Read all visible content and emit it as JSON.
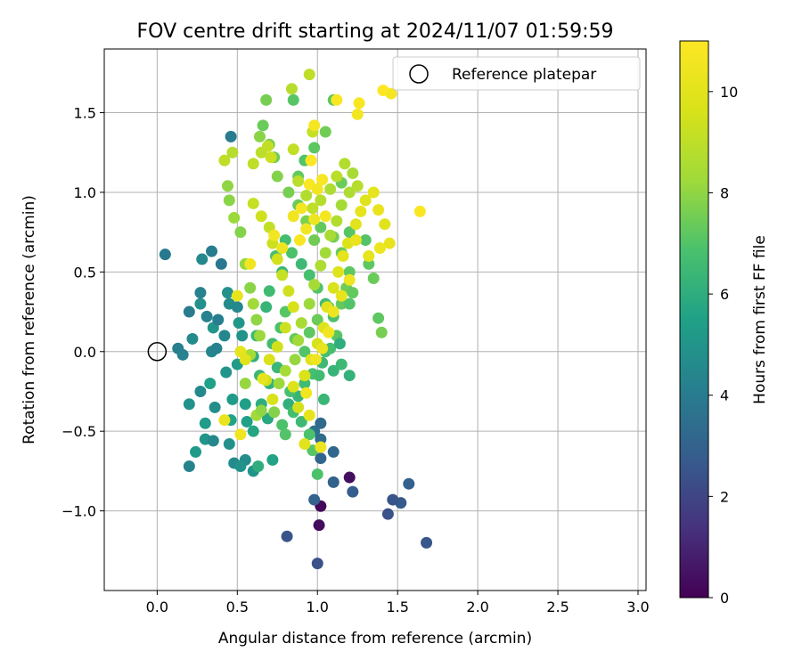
{
  "chart_data": {
    "type": "scatter",
    "title": "FOV centre drift starting at 2024/11/07 01:59:59",
    "xlabel": "Angular distance from reference (arcmin)",
    "ylabel": "Rotation from reference (arcmin)",
    "xlim": [
      -0.33,
      3.05
    ],
    "ylim": [
      -1.5,
      1.9
    ],
    "xticks": [
      0.0,
      0.5,
      1.0,
      1.5,
      2.0,
      2.5,
      3.0
    ],
    "xtick_labels": [
      "0.0",
      "0.5",
      "1.0",
      "1.5",
      "2.0",
      "2.5",
      "3.0"
    ],
    "yticks": [
      -1.0,
      -0.5,
      0.0,
      0.5,
      1.0,
      1.5
    ],
    "ytick_labels": [
      "−1.0",
      "−0.5",
      "0.0",
      "0.5",
      "1.0",
      "1.5"
    ],
    "grid": true,
    "colormap": "viridis",
    "colorbar": {
      "label": "Hours from first FF file",
      "min": 0,
      "max": 11,
      "ticks": [
        0,
        2,
        4,
        6,
        8,
        10
      ],
      "tick_labels": [
        "0",
        "2",
        "4",
        "6",
        "8",
        "10"
      ]
    },
    "legend": {
      "position": "top-right",
      "entries": [
        {
          "label": "Reference platepar",
          "marker": "open-circle"
        }
      ]
    },
    "reference_point": {
      "x": 0.0,
      "y": 0.0
    },
    "points": [
      [
        1.02,
        -0.97,
        0.2
      ],
      [
        1.01,
        -1.09,
        0.3
      ],
      [
        1.2,
        -0.79,
        0.4
      ],
      [
        0.81,
        -1.16,
        2.5
      ],
      [
        1.0,
        -1.33,
        2.4
      ],
      [
        1.68,
        -1.2,
        2.6
      ],
      [
        1.44,
        -1.02,
        2.4
      ],
      [
        1.52,
        -0.95,
        2.7
      ],
      [
        1.57,
        -0.83,
        2.9
      ],
      [
        1.22,
        -0.88,
        2.8
      ],
      [
        1.1,
        -0.82,
        3.0
      ],
      [
        1.47,
        -0.93,
        2.5
      ],
      [
        1.1,
        -0.63,
        3.2
      ],
      [
        0.98,
        -0.93,
        3.0
      ],
      [
        1.02,
        -0.67,
        3.1
      ],
      [
        1.02,
        -0.45,
        3.3
      ],
      [
        1.02,
        -0.55,
        3.4
      ],
      [
        0.98,
        -0.5,
        3.5
      ],
      [
        0.05,
        0.61,
        3.9
      ],
      [
        0.46,
        1.35,
        4.0
      ],
      [
        0.2,
        -0.72,
        4.3
      ],
      [
        0.28,
        0.58,
        4.5
      ],
      [
        0.34,
        0.63,
        4.0
      ],
      [
        0.4,
        0.55,
        3.8
      ],
      [
        0.13,
        0.02,
        4.1
      ],
      [
        0.16,
        -0.02,
        4.2
      ],
      [
        0.2,
        0.25,
        4.0
      ],
      [
        0.22,
        0.08,
        4.6
      ],
      [
        0.27,
        0.3,
        4.8
      ],
      [
        0.31,
        0.22,
        4.2
      ],
      [
        0.34,
        0.0,
        4.4
      ],
      [
        0.35,
        0.15,
        5.0
      ],
      [
        0.2,
        -0.33,
        4.9
      ],
      [
        0.24,
        -0.63,
        5.2
      ],
      [
        0.3,
        -0.55,
        5.0
      ],
      [
        0.36,
        -0.35,
        4.7
      ],
      [
        0.35,
        -0.56,
        4.5
      ],
      [
        0.45,
        -0.58,
        4.8
      ],
      [
        0.48,
        -0.7,
        4.6
      ],
      [
        0.55,
        -0.68,
        4.7
      ],
      [
        0.52,
        -0.72,
        4.9
      ],
      [
        0.6,
        -0.75,
        5.0
      ],
      [
        0.27,
        0.37,
        4.3
      ],
      [
        0.27,
        -0.25,
        4.5
      ],
      [
        0.3,
        -0.45,
        5.3
      ],
      [
        0.33,
        -0.2,
        5.5
      ],
      [
        0.37,
        0.02,
        4.2
      ],
      [
        0.42,
        0.1,
        4.4
      ],
      [
        0.38,
        0.2,
        4.1
      ],
      [
        0.45,
        0.3,
        4.6
      ],
      [
        0.5,
        0.28,
        4.5
      ],
      [
        0.44,
        0.37,
        4.8
      ],
      [
        0.51,
        0.18,
        5.1
      ],
      [
        0.53,
        0.1,
        4.9
      ],
      [
        0.5,
        -0.08,
        5.3
      ],
      [
        0.43,
        -0.13,
        5.0
      ],
      [
        0.47,
        -0.3,
        5.2
      ],
      [
        0.46,
        -0.43,
        5.6
      ],
      [
        0.55,
        -0.33,
        5.4
      ],
      [
        0.56,
        -0.44,
        5.5
      ],
      [
        0.6,
        -0.5,
        5.7
      ],
      [
        0.63,
        -0.72,
        6.0
      ],
      [
        0.72,
        -0.68,
        5.6
      ],
      [
        0.69,
        -0.42,
        5.8
      ],
      [
        0.65,
        -0.33,
        6.0
      ],
      [
        0.7,
        -0.2,
        6.2
      ],
      [
        0.64,
        -0.15,
        6.4
      ],
      [
        0.6,
        -0.03,
        6.1
      ],
      [
        0.62,
        0.1,
        6.5
      ],
      [
        0.68,
        0.28,
        6.3
      ],
      [
        0.7,
        0.38,
        6.6
      ],
      [
        0.78,
        0.5,
        6.4
      ],
      [
        0.74,
        0.6,
        6.8
      ],
      [
        0.8,
        0.7,
        6.7
      ],
      [
        0.84,
        0.62,
        6.9
      ],
      [
        0.9,
        0.55,
        6.5
      ],
      [
        0.95,
        0.48,
        6.8
      ],
      [
        1.0,
        0.4,
        7.0
      ],
      [
        1.05,
        0.3,
        6.6
      ],
      [
        1.1,
        0.22,
        6.9
      ],
      [
        1.12,
        0.1,
        7.1
      ],
      [
        1.08,
        0.02,
        6.7
      ],
      [
        1.03,
        -0.07,
        6.5
      ],
      [
        0.97,
        -0.14,
        6.8
      ],
      [
        0.92,
        -0.2,
        6.6
      ],
      [
        0.88,
        -0.28,
        6.3
      ],
      [
        0.82,
        -0.33,
        6.1
      ],
      [
        0.78,
        -0.46,
        6.9
      ],
      [
        0.8,
        -0.52,
        7.0
      ],
      [
        0.85,
        -0.38,
        6.7
      ],
      [
        0.9,
        -0.44,
        6.5
      ],
      [
        0.95,
        -0.52,
        6.9
      ],
      [
        0.97,
        -0.62,
        7.1
      ],
      [
        1.0,
        -0.77,
        6.9
      ],
      [
        0.83,
        -0.25,
        6.8
      ],
      [
        0.75,
        -0.1,
        6.4
      ],
      [
        0.72,
        0.05,
        6.6
      ],
      [
        0.77,
        0.15,
        6.9
      ],
      [
        0.8,
        0.25,
        7.1
      ],
      [
        0.86,
        0.08,
        7.3
      ],
      [
        0.92,
        0.0,
        7.0
      ],
      [
        0.95,
        0.12,
        7.2
      ],
      [
        1.0,
        0.2,
        7.4
      ],
      [
        1.07,
        0.28,
        7.1
      ],
      [
        1.15,
        0.3,
        7.3
      ],
      [
        1.18,
        0.4,
        7.5
      ],
      [
        1.2,
        0.5,
        7.2
      ],
      [
        1.15,
        0.62,
        7.4
      ],
      [
        1.1,
        0.72,
        7.6
      ],
      [
        1.02,
        0.78,
        7.3
      ],
      [
        0.98,
        0.7,
        7.5
      ],
      [
        0.93,
        0.82,
        7.7
      ],
      [
        0.88,
        0.92,
        7.4
      ],
      [
        0.82,
        1.0,
        7.6
      ],
      [
        0.75,
        1.1,
        7.8
      ],
      [
        0.73,
        1.22,
        7.5
      ],
      [
        0.7,
        1.3,
        7.7
      ],
      [
        0.66,
        1.42,
        7.4
      ],
      [
        0.64,
        1.35,
        7.9
      ],
      [
        0.68,
        1.58,
        7.6
      ],
      [
        0.85,
        1.58,
        7.1
      ],
      [
        0.88,
        1.1,
        7.3
      ],
      [
        0.92,
        1.2,
        7.0
      ],
      [
        0.98,
        1.28,
        7.2
      ],
      [
        1.05,
        1.38,
        7.5
      ],
      [
        1.1,
        1.58,
        7.2
      ],
      [
        1.15,
        1.06,
        7.4
      ],
      [
        1.2,
        0.75,
        7.1
      ],
      [
        1.3,
        0.7,
        7.0
      ],
      [
        1.32,
        0.55,
        7.2
      ],
      [
        1.35,
        0.46,
        7.4
      ],
      [
        1.38,
        0.21,
        7.2
      ],
      [
        1.4,
        0.12,
        7.6
      ],
      [
        1.22,
        0.37,
        7.3
      ],
      [
        1.2,
        0.3,
        7.0
      ],
      [
        1.05,
        0.0,
        6.8
      ],
      [
        1.01,
        -0.15,
        6.6
      ],
      [
        1.04,
        -0.3,
        6.4
      ],
      [
        1.1,
        -0.12,
        6.3
      ],
      [
        1.15,
        -0.08,
        6.5
      ],
      [
        1.2,
        -0.15,
        6.2
      ],
      [
        1.14,
        0.05,
        6.0
      ],
      [
        0.45,
        0.95,
        7.9
      ],
      [
        0.44,
        1.04,
        8.0
      ],
      [
        0.48,
        0.84,
        8.2
      ],
      [
        0.52,
        0.75,
        7.8
      ],
      [
        0.55,
        0.55,
        8.1
      ],
      [
        0.58,
        0.4,
        7.9
      ],
      [
        0.6,
        0.3,
        8.3
      ],
      [
        0.62,
        0.2,
        8.0
      ],
      [
        0.64,
        0.1,
        8.2
      ],
      [
        0.58,
        -0.02,
        8.4
      ],
      [
        0.55,
        -0.2,
        8.1
      ],
      [
        0.62,
        -0.4,
        8.3
      ],
      [
        0.65,
        -0.37,
        8.0
      ],
      [
        0.73,
        -0.38,
        7.8
      ],
      [
        0.76,
        -0.2,
        8.2
      ],
      [
        0.8,
        -0.12,
        8.4
      ],
      [
        0.86,
        -0.05,
        8.1
      ],
      [
        0.88,
        0.07,
        8.3
      ],
      [
        0.9,
        0.18,
        8.5
      ],
      [
        0.95,
        0.3,
        8.2
      ],
      [
        0.98,
        0.42,
        8.4
      ],
      [
        1.02,
        0.54,
        8.6
      ],
      [
        1.05,
        0.62,
        8.3
      ],
      [
        1.08,
        0.73,
        8.5
      ],
      [
        1.12,
        0.82,
        8.7
      ],
      [
        1.15,
        0.92,
        8.4
      ],
      [
        1.2,
        1.0,
        8.6
      ],
      [
        1.25,
        1.04,
        8.8
      ],
      [
        1.22,
        1.12,
        8.5
      ],
      [
        1.17,
        1.18,
        8.7
      ],
      [
        1.12,
        1.1,
        8.9
      ],
      [
        1.08,
        1.02,
        8.6
      ],
      [
        1.02,
        0.95,
        8.8
      ],
      [
        0.97,
        0.9,
        9.0
      ],
      [
        0.93,
        0.98,
        8.7
      ],
      [
        0.88,
        1.07,
        8.9
      ],
      [
        0.85,
        1.27,
        9.1
      ],
      [
        0.84,
        1.65,
        8.8
      ],
      [
        0.95,
        1.74,
        9.0
      ],
      [
        0.97,
        1.38,
        9.2
      ],
      [
        0.65,
        1.25,
        8.9
      ],
      [
        0.69,
        1.29,
        9.1
      ],
      [
        0.71,
        1.22,
        9.3
      ],
      [
        0.6,
        1.18,
        9.0
      ],
      [
        0.47,
        1.25,
        8.8
      ],
      [
        0.42,
        1.2,
        9.0
      ],
      [
        0.6,
        0.93,
        9.2
      ],
      [
        0.65,
        0.85,
        9.4
      ],
      [
        0.7,
        0.78,
        9.1
      ],
      [
        0.72,
        0.68,
        9.3
      ],
      [
        0.75,
        0.58,
        9.5
      ],
      [
        0.78,
        0.48,
        9.2
      ],
      [
        0.82,
        0.38,
        9.4
      ],
      [
        0.85,
        0.28,
        9.6
      ],
      [
        0.8,
        0.15,
        9.3
      ],
      [
        0.75,
        0.03,
        9.5
      ],
      [
        0.7,
        -0.05,
        9.7
      ],
      [
        0.68,
        -0.18,
        9.4
      ],
      [
        0.72,
        -0.3,
        9.6
      ],
      [
        0.85,
        -0.22,
        9.8
      ],
      [
        0.88,
        -0.35,
        9.5
      ],
      [
        0.92,
        -0.15,
        9.7
      ],
      [
        0.96,
        -0.05,
        9.9
      ],
      [
        1.0,
        0.05,
        9.6
      ],
      [
        1.04,
        0.15,
        9.8
      ],
      [
        1.06,
        0.28,
        10.0
      ],
      [
        1.1,
        0.4,
        9.7
      ],
      [
        1.13,
        0.5,
        9.9
      ],
      [
        1.16,
        0.6,
        10.1
      ],
      [
        1.19,
        0.68,
        9.8
      ],
      [
        1.24,
        0.8,
        10.0
      ],
      [
        1.27,
        0.88,
        10.2
      ],
      [
        1.3,
        0.95,
        9.9
      ],
      [
        1.35,
        1.0,
        10.1
      ],
      [
        1.38,
        0.89,
        10.3
      ],
      [
        1.42,
        0.8,
        10.0
      ],
      [
        1.45,
        0.68,
        10.2
      ],
      [
        1.39,
        0.65,
        10.4
      ],
      [
        1.32,
        0.6,
        10.1
      ],
      [
        1.24,
        0.7,
        10.3
      ],
      [
        1.2,
        0.45,
        10.5
      ],
      [
        1.15,
        0.35,
        10.2
      ],
      [
        1.1,
        0.25,
        10.4
      ],
      [
        1.07,
        0.12,
        10.6
      ],
      [
        1.03,
        0.02,
        10.3
      ],
      [
        0.99,
        -0.05,
        10.5
      ],
      [
        1.05,
        0.85,
        10.7
      ],
      [
        0.98,
        0.83,
        10.4
      ],
      [
        0.93,
        0.77,
        10.6
      ],
      [
        0.89,
        0.7,
        10.8
      ],
      [
        0.85,
        0.85,
        10.5
      ],
      [
        0.9,
        0.9,
        10.7
      ],
      [
        0.95,
        1.05,
        10.9
      ],
      [
        1.0,
        1.02,
        10.6
      ],
      [
        1.03,
        1.08,
        10.8
      ],
      [
        0.96,
        1.2,
        11.0
      ],
      [
        0.98,
        1.42,
        10.7
      ],
      [
        1.12,
        1.58,
        10.9
      ],
      [
        1.25,
        1.49,
        10.6
      ],
      [
        1.26,
        1.56,
        10.8
      ],
      [
        1.41,
        1.64,
        11.0
      ],
      [
        1.46,
        1.62,
        10.7
      ],
      [
        1.64,
        0.88,
        10.9
      ],
      [
        0.73,
        0.73,
        10.6
      ],
      [
        0.78,
        0.65,
        10.4
      ],
      [
        0.58,
        0.55,
        10.5
      ],
      [
        0.5,
        0.35,
        10.2
      ],
      [
        0.52,
        0.0,
        10.1
      ],
      [
        0.55,
        -0.05,
        10.0
      ],
      [
        0.42,
        -0.43,
        10.3
      ],
      [
        0.52,
        -0.52,
        10.5
      ],
      [
        0.66,
        -0.17,
        10.1
      ],
      [
        0.95,
        -0.4,
        10.2
      ],
      [
        0.92,
        -0.58,
        10.0
      ],
      [
        1.02,
        -0.6,
        10.4
      ],
      [
        0.93,
        -0.26,
        10.6
      ]
    ]
  }
}
